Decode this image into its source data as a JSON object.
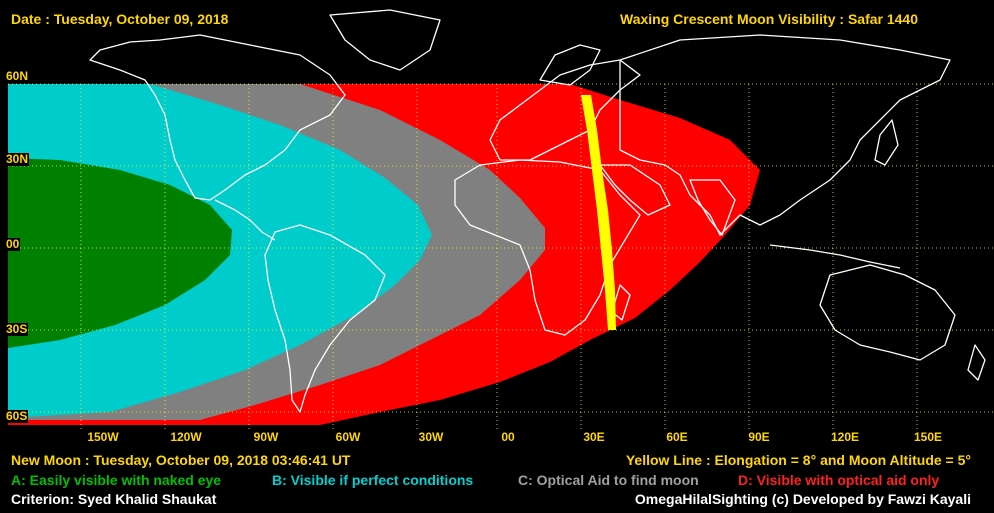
{
  "header": {
    "date": "Date : Tuesday, October 09, 2018",
    "title": "Waxing Crescent Moon Visibility : Safar 1440"
  },
  "latitude_labels": [
    "60N",
    "30N",
    "00",
    "30S",
    "60S"
  ],
  "longitude_labels": [
    "150W",
    "120W",
    "90W",
    "60W",
    "30W",
    "00",
    "30E",
    "60E",
    "90E",
    "120E",
    "150E"
  ],
  "footer": {
    "new_moon": "New Moon : Tuesday, October 09, 2018  03:46:41  UT",
    "yellow_line": "Yellow Line : Elongation = 8° and Moon Altitude = 5°",
    "legend": [
      {
        "key": "A",
        "text": "A: Easily visible with naked eye",
        "color": "#00c000"
      },
      {
        "key": "B",
        "text": "B: Visible if perfect conditions",
        "color": "#00d0d0"
      },
      {
        "key": "C",
        "text": "C: Optical Aid to find moon",
        "color": "#a0a0a0"
      },
      {
        "key": "D",
        "text": "D: Visible with optical aid only",
        "color": "#ff2020"
      }
    ],
    "criterion": "Criterion: Syed Khalid Shaukat",
    "credit": "OmegaHilalSighting  (c)  Developed by Fawzi Kayali"
  },
  "colors": {
    "zone_a": "#008000",
    "zone_b": "#00cccc",
    "zone_c": "#808080",
    "zone_d": "#ff0000",
    "yellow_line": "#ffff00",
    "grid": "#ffff00",
    "coast": "#ffffff"
  }
}
